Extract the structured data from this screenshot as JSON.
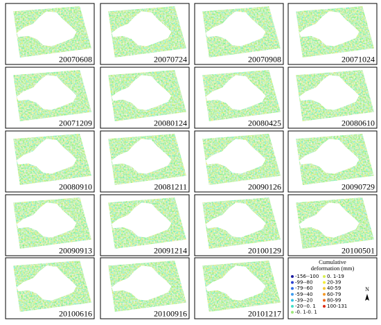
{
  "panels": [
    "20070608",
    "20070724",
    "20070908",
    "20071024",
    "20071209",
    "20080124",
    "20080425",
    "20080610",
    "20080910",
    "20081211",
    "20090126",
    "20090729",
    "20090913",
    "20091214",
    "20100129",
    "20100501",
    "20100616",
    "20100916",
    "20101217"
  ],
  "legend": {
    "title": [
      "Cumulative",
      "deformation (mm)"
    ],
    "items": [
      {
        "label": "-156--100",
        "color": "#1a1aa0"
      },
      {
        "label": "-99--80",
        "color": "#2a3fd0"
      },
      {
        "label": "-79--60",
        "color": "#2f6ce8"
      },
      {
        "label": "-59--40",
        "color": "#3c9bf0"
      },
      {
        "label": "-39--20",
        "color": "#33c4e8"
      },
      {
        "label": "-20--0. 1",
        "color": "#40e0c8"
      },
      {
        "label": "-0. 1-0. 1",
        "color": "#9ee87a"
      },
      {
        "label": "0. 1-19",
        "color": "#d8f050"
      },
      {
        "label": "20-39",
        "color": "#f4ee3a"
      },
      {
        "label": "40-59",
        "color": "#f6c830"
      },
      {
        "label": "60-79",
        "color": "#f49a28"
      },
      {
        "label": "80-99",
        "color": "#ee6a20"
      },
      {
        "label": "100-131",
        "color": "#dd2a14"
      }
    ],
    "north": "N"
  }
}
